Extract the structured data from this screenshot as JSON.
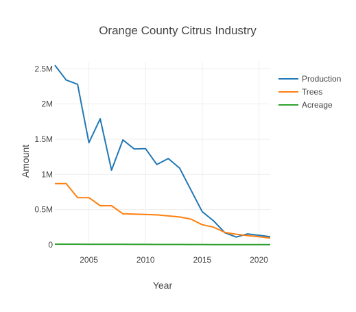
{
  "chart_data": {
    "type": "line",
    "title": "Orange County Citrus Industry",
    "xlabel": "Year",
    "ylabel": "Amount",
    "xlim": [
      2002,
      2021
    ],
    "ylim": [
      0,
      2600000
    ],
    "x_ticks": [
      2005,
      2010,
      2015,
      2020
    ],
    "y_ticks": [
      {
        "value": 0,
        "label": "0"
      },
      {
        "value": 500000,
        "label": "0.5M"
      },
      {
        "value": 1000000,
        "label": "1M"
      },
      {
        "value": 1500000,
        "label": "1.5M"
      },
      {
        "value": 2000000,
        "label": "2M"
      },
      {
        "value": 2500000,
        "label": "2.5M"
      }
    ],
    "grid": true,
    "legend_position": "top-right",
    "x": [
      2002,
      2003,
      2004,
      2005,
      2006,
      2007,
      2008,
      2009,
      2010,
      2011,
      2012,
      2013,
      2014,
      2015,
      2016,
      2017,
      2018,
      2019,
      2020,
      2021
    ],
    "series": [
      {
        "name": "Production",
        "color": "#1f77b4",
        "values": [
          2550000,
          2340000,
          2280000,
          1450000,
          1790000,
          1060000,
          1490000,
          1360000,
          1365000,
          1140000,
          1225000,
          1090000,
          780000,
          470000,
          340000,
          170000,
          110000,
          155000,
          135000,
          115000
        ]
      },
      {
        "name": "Trees",
        "color": "#ff7f0e",
        "values": [
          870000,
          870000,
          670000,
          670000,
          555000,
          555000,
          440000,
          435000,
          430000,
          425000,
          410000,
          395000,
          365000,
          285000,
          250000,
          175000,
          150000,
          130000,
          115000,
          95000
        ]
      },
      {
        "name": "Acreage",
        "color": "#2ca02c",
        "values": [
          9000,
          9000,
          8500,
          8000,
          7500,
          7000,
          6500,
          6000,
          5500,
          5000,
          4800,
          4500,
          4000,
          3500,
          3000,
          2500,
          2200,
          2000,
          1800,
          1600
        ]
      }
    ]
  }
}
